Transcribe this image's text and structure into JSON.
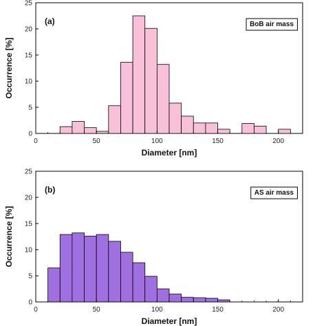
{
  "chart_data": [
    {
      "type": "bar",
      "panel_label": "(a)",
      "legend": "BoB air mass",
      "xlabel": "Diameter [nm]",
      "ylabel": "Occurrence [%]",
      "xlim": [
        0,
        220
      ],
      "ylim": [
        0,
        25
      ],
      "xticks": [
        0,
        50,
        100,
        150,
        200
      ],
      "yticks": [
        0,
        5,
        10,
        15,
        20,
        25
      ],
      "bin_width": 10,
      "bin_starts": [
        20,
        30,
        40,
        50,
        60,
        70,
        80,
        90,
        100,
        110,
        120,
        130,
        140,
        150,
        170,
        180,
        200
      ],
      "values": [
        1.3,
        2.3,
        1.1,
        0.4,
        5.3,
        13.6,
        22.5,
        20.1,
        13.2,
        5.8,
        3.3,
        2.0,
        2.0,
        0.8,
        1.9,
        1.4,
        0.8
      ],
      "color": "#f9c1d9"
    },
    {
      "type": "bar",
      "panel_label": "(b)",
      "legend": "AS air mass",
      "xlabel": "Diameter [nm]",
      "ylabel": "Occurrence [%]",
      "xlim": [
        0,
        220
      ],
      "ylim": [
        0,
        25
      ],
      "xticks": [
        0,
        50,
        100,
        150,
        200
      ],
      "yticks": [
        0,
        5,
        10,
        15,
        20,
        25
      ],
      "bin_width": 10,
      "bin_starts": [
        10,
        20,
        30,
        40,
        50,
        60,
        70,
        80,
        90,
        100,
        110,
        120,
        130,
        140,
        150
      ],
      "values": [
        6.5,
        12.9,
        13.2,
        12.6,
        12.9,
        11.6,
        9.5,
        7.5,
        4.9,
        2.5,
        1.5,
        0.9,
        0.8,
        0.7,
        0.4
      ],
      "color": "#a070e0"
    }
  ]
}
